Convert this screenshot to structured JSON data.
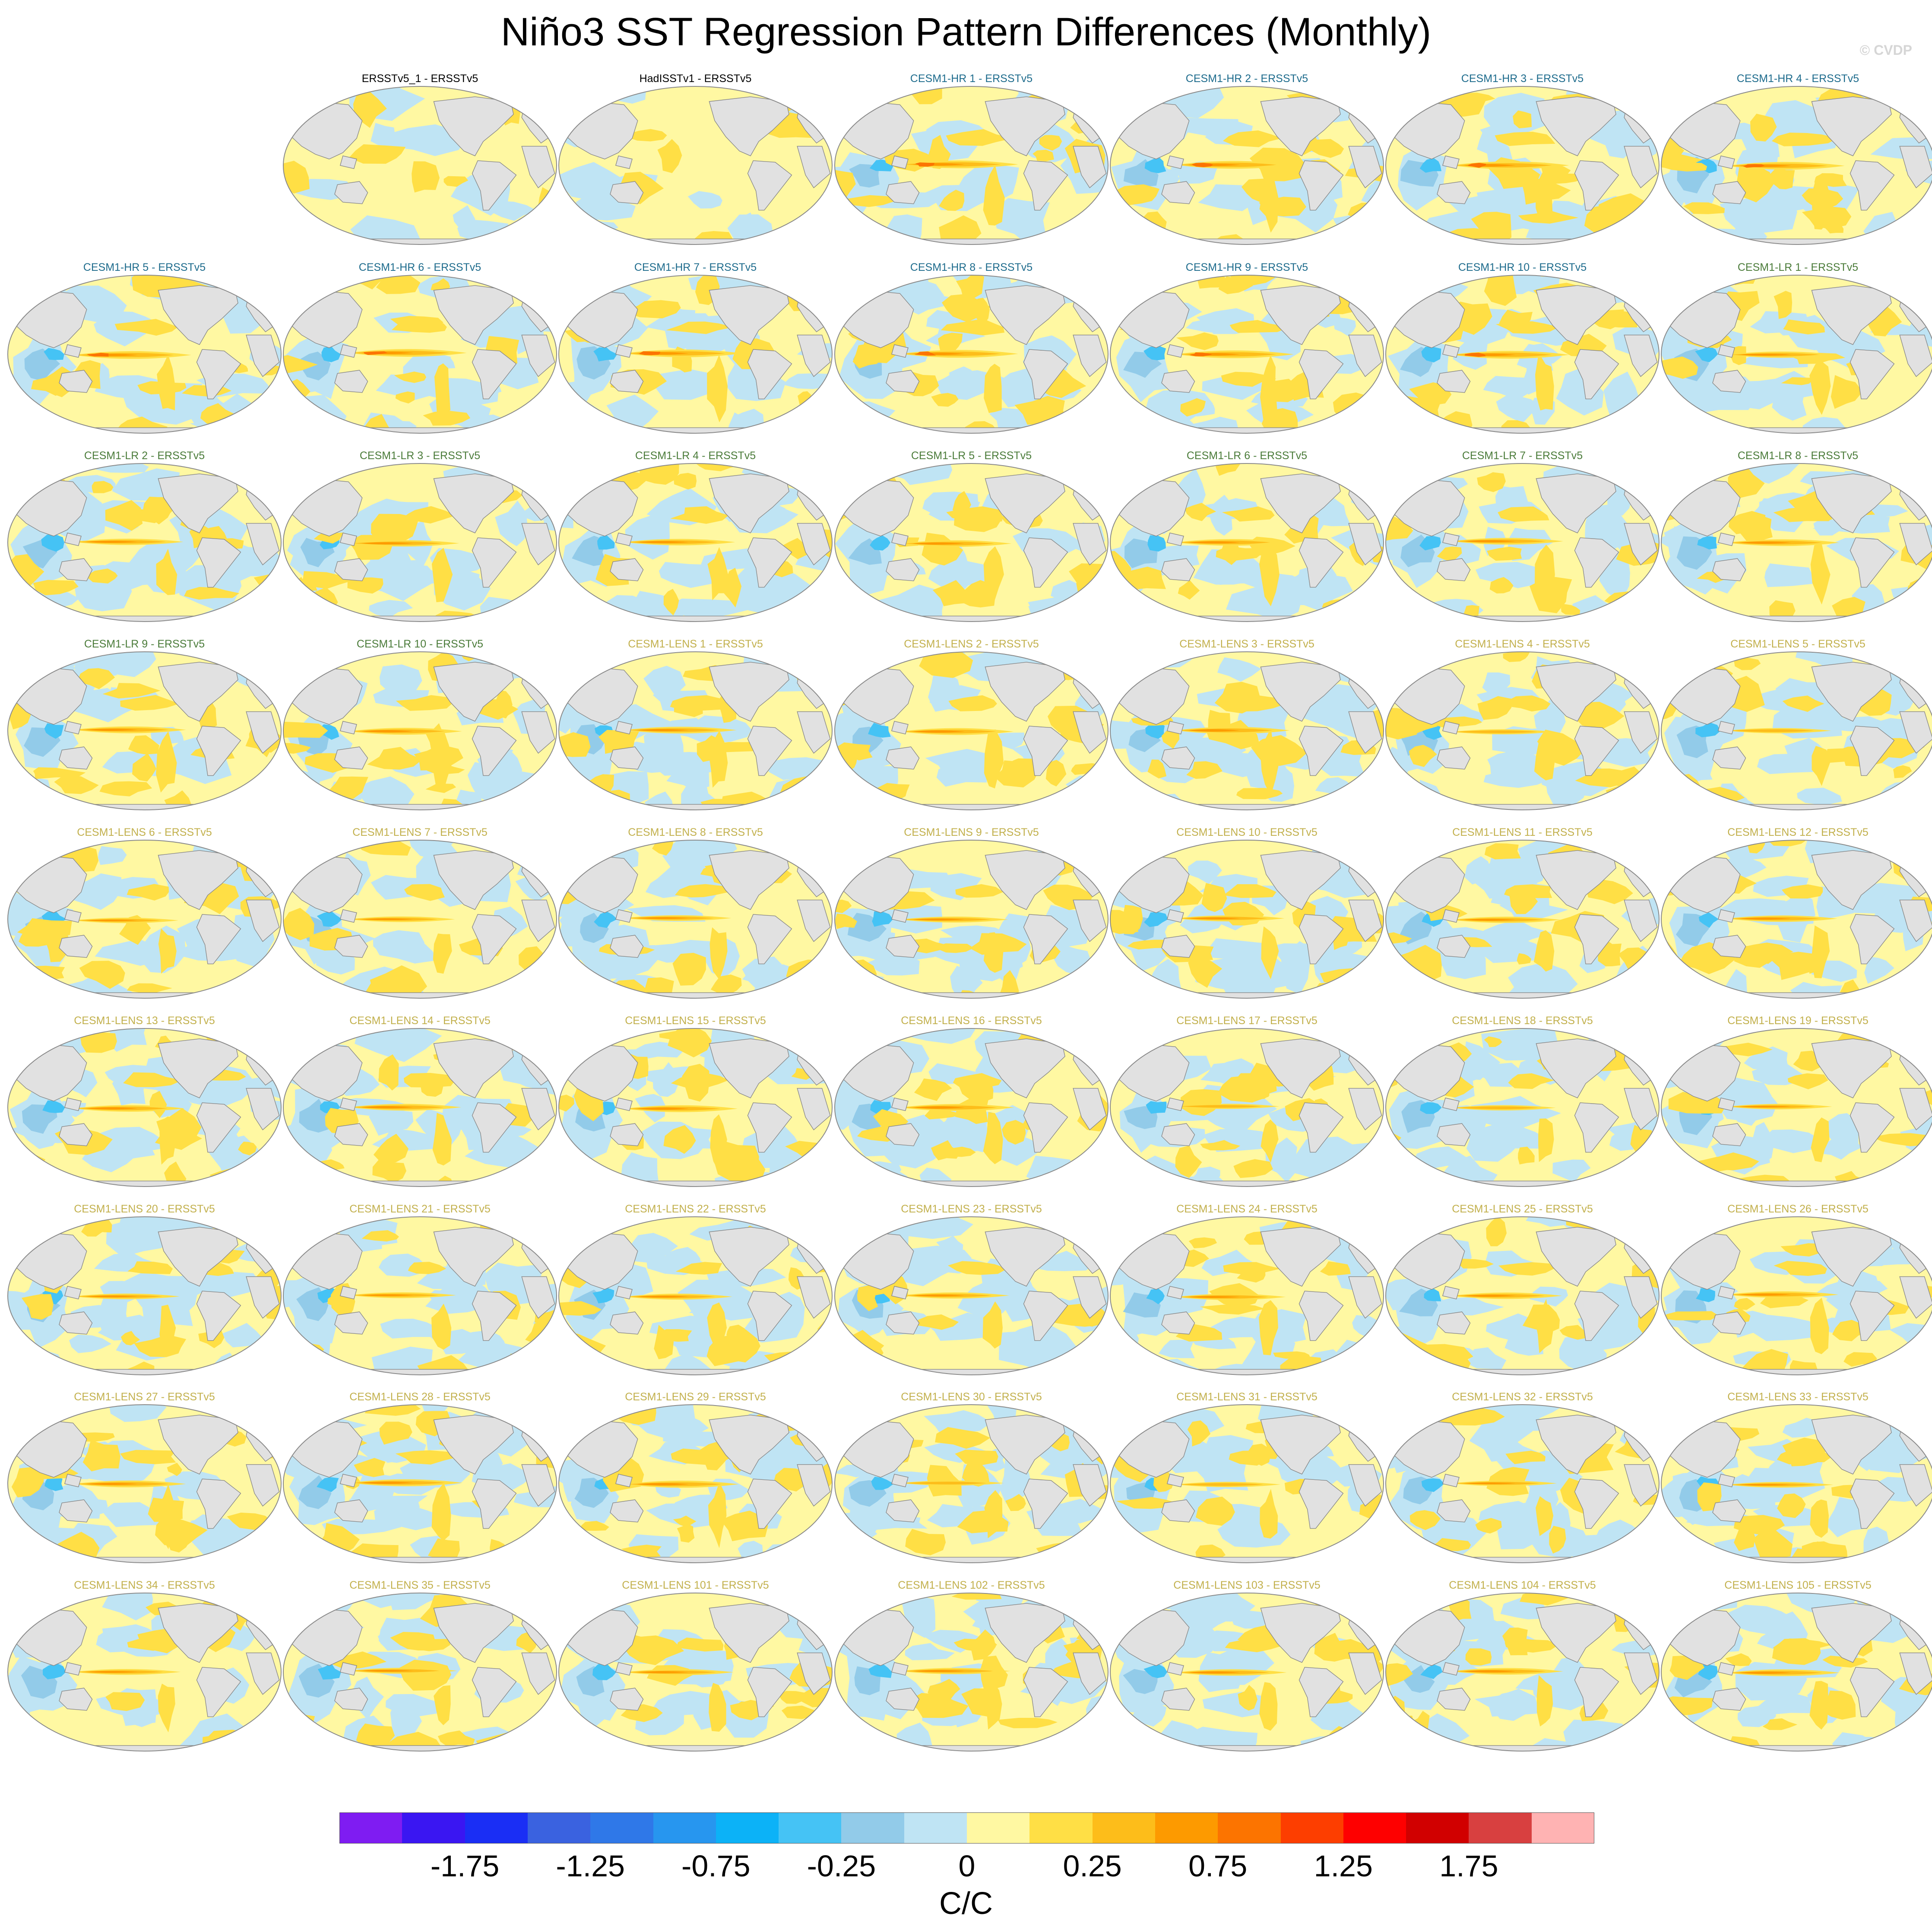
{
  "figure": {
    "title": "Niño3 SST Regression Pattern Differences (Monthly)",
    "copyright": "© CVDP",
    "colors": {
      "obs_label": "#000000",
      "hr_label": "#1d6b8c",
      "lr_label": "#4a7b39",
      "lens_label": "#c2b04c",
      "land": "#e1e1e1",
      "coast": "#888888"
    }
  },
  "panels": [
    {
      "label": "ERSSTv5_1 - ERSSTv5",
      "group": "obs",
      "row": 0,
      "col": 1
    },
    {
      "label": "HadISSTv1 - ERSSTv5",
      "group": "obs",
      "row": 0,
      "col": 2
    },
    {
      "label": "CESM1-HR 1 - ERSSTv5",
      "group": "hr",
      "row": 0,
      "col": 3
    },
    {
      "label": "CESM1-HR 2 - ERSSTv5",
      "group": "hr",
      "row": 0,
      "col": 4
    },
    {
      "label": "CESM1-HR 3 - ERSSTv5",
      "group": "hr",
      "row": 0,
      "col": 5
    },
    {
      "label": "CESM1-HR 4 - ERSSTv5",
      "group": "hr",
      "row": 0,
      "col": 6
    },
    {
      "label": "CESM1-HR 5 - ERSSTv5",
      "group": "hr",
      "row": 1,
      "col": 0
    },
    {
      "label": "CESM1-HR 6 - ERSSTv5",
      "group": "hr",
      "row": 1,
      "col": 1
    },
    {
      "label": "CESM1-HR 7 - ERSSTv5",
      "group": "hr",
      "row": 1,
      "col": 2
    },
    {
      "label": "CESM1-HR 8 - ERSSTv5",
      "group": "hr",
      "row": 1,
      "col": 3
    },
    {
      "label": "CESM1-HR 9 - ERSSTv5",
      "group": "hr",
      "row": 1,
      "col": 4
    },
    {
      "label": "CESM1-HR 10 - ERSSTv5",
      "group": "hr",
      "row": 1,
      "col": 5
    },
    {
      "label": "CESM1-LR 1 - ERSSTv5",
      "group": "lr",
      "row": 1,
      "col": 6
    },
    {
      "label": "CESM1-LR 2 - ERSSTv5",
      "group": "lr",
      "row": 2,
      "col": 0
    },
    {
      "label": "CESM1-LR 3 - ERSSTv5",
      "group": "lr",
      "row": 2,
      "col": 1
    },
    {
      "label": "CESM1-LR 4 - ERSSTv5",
      "group": "lr",
      "row": 2,
      "col": 2
    },
    {
      "label": "CESM1-LR 5 - ERSSTv5",
      "group": "lr",
      "row": 2,
      "col": 3
    },
    {
      "label": "CESM1-LR 6 - ERSSTv5",
      "group": "lr",
      "row": 2,
      "col": 4
    },
    {
      "label": "CESM1-LR 7 - ERSSTv5",
      "group": "lr",
      "row": 2,
      "col": 5
    },
    {
      "label": "CESM1-LR 8 - ERSSTv5",
      "group": "lr",
      "row": 2,
      "col": 6
    },
    {
      "label": "CESM1-LR 9 - ERSSTv5",
      "group": "lr",
      "row": 3,
      "col": 0
    },
    {
      "label": "CESM1-LR 10 - ERSSTv5",
      "group": "lr",
      "row": 3,
      "col": 1
    },
    {
      "label": "CESM1-LENS 1 - ERSSTv5",
      "group": "lens",
      "row": 3,
      "col": 2
    },
    {
      "label": "CESM1-LENS 2 - ERSSTv5",
      "group": "lens",
      "row": 3,
      "col": 3
    },
    {
      "label": "CESM1-LENS 3 - ERSSTv5",
      "group": "lens",
      "row": 3,
      "col": 4
    },
    {
      "label": "CESM1-LENS 4 - ERSSTv5",
      "group": "lens",
      "row": 3,
      "col": 5
    },
    {
      "label": "CESM1-LENS 5 - ERSSTv5",
      "group": "lens",
      "row": 3,
      "col": 6
    },
    {
      "label": "CESM1-LENS 6 - ERSSTv5",
      "group": "lens",
      "row": 4,
      "col": 0
    },
    {
      "label": "CESM1-LENS 7 - ERSSTv5",
      "group": "lens",
      "row": 4,
      "col": 1
    },
    {
      "label": "CESM1-LENS 8 - ERSSTv5",
      "group": "lens",
      "row": 4,
      "col": 2
    },
    {
      "label": "CESM1-LENS 9 - ERSSTv5",
      "group": "lens",
      "row": 4,
      "col": 3
    },
    {
      "label": "CESM1-LENS 10 - ERSSTv5",
      "group": "lens",
      "row": 4,
      "col": 4
    },
    {
      "label": "CESM1-LENS 11 - ERSSTv5",
      "group": "lens",
      "row": 4,
      "col": 5
    },
    {
      "label": "CESM1-LENS 12 - ERSSTv5",
      "group": "lens",
      "row": 4,
      "col": 6
    },
    {
      "label": "CESM1-LENS 13 - ERSSTv5",
      "group": "lens",
      "row": 5,
      "col": 0
    },
    {
      "label": "CESM1-LENS 14 - ERSSTv5",
      "group": "lens",
      "row": 5,
      "col": 1
    },
    {
      "label": "CESM1-LENS 15 - ERSSTv5",
      "group": "lens",
      "row": 5,
      "col": 2
    },
    {
      "label": "CESM1-LENS 16 - ERSSTv5",
      "group": "lens",
      "row": 5,
      "col": 3
    },
    {
      "label": "CESM1-LENS 17 - ERSSTv5",
      "group": "lens",
      "row": 5,
      "col": 4
    },
    {
      "label": "CESM1-LENS 18 - ERSSTv5",
      "group": "lens",
      "row": 5,
      "col": 5
    },
    {
      "label": "CESM1-LENS 19 - ERSSTv5",
      "group": "lens",
      "row": 5,
      "col": 6
    },
    {
      "label": "CESM1-LENS 20 - ERSSTv5",
      "group": "lens",
      "row": 6,
      "col": 0
    },
    {
      "label": "CESM1-LENS 21 - ERSSTv5",
      "group": "lens",
      "row": 6,
      "col": 1
    },
    {
      "label": "CESM1-LENS 22 - ERSSTv5",
      "group": "lens",
      "row": 6,
      "col": 2
    },
    {
      "label": "CESM1-LENS 23 - ERSSTv5",
      "group": "lens",
      "row": 6,
      "col": 3
    },
    {
      "label": "CESM1-LENS 24 - ERSSTv5",
      "group": "lens",
      "row": 6,
      "col": 4
    },
    {
      "label": "CESM1-LENS 25 - ERSSTv5",
      "group": "lens",
      "row": 6,
      "col": 5
    },
    {
      "label": "CESM1-LENS 26 - ERSSTv5",
      "group": "lens",
      "row": 6,
      "col": 6
    },
    {
      "label": "CESM1-LENS 27 - ERSSTv5",
      "group": "lens",
      "row": 7,
      "col": 0
    },
    {
      "label": "CESM1-LENS 28 - ERSSTv5",
      "group": "lens",
      "row": 7,
      "col": 1
    },
    {
      "label": "CESM1-LENS 29 - ERSSTv5",
      "group": "lens",
      "row": 7,
      "col": 2
    },
    {
      "label": "CESM1-LENS 30 - ERSSTv5",
      "group": "lens",
      "row": 7,
      "col": 3
    },
    {
      "label": "CESM1-LENS 31 - ERSSTv5",
      "group": "lens",
      "row": 7,
      "col": 4
    },
    {
      "label": "CESM1-LENS 32 - ERSSTv5",
      "group": "lens",
      "row": 7,
      "col": 5
    },
    {
      "label": "CESM1-LENS 33 - ERSSTv5",
      "group": "lens",
      "row": 7,
      "col": 6
    },
    {
      "label": "CESM1-LENS 34 - ERSSTv5",
      "group": "lens",
      "row": 8,
      "col": 0
    },
    {
      "label": "CESM1-LENS 35 - ERSSTv5",
      "group": "lens",
      "row": 8,
      "col": 1
    },
    {
      "label": "CESM1-LENS 101 - ERSSTv5",
      "group": "lens",
      "row": 8,
      "col": 2
    },
    {
      "label": "CESM1-LENS 102 - ERSSTv5",
      "group": "lens",
      "row": 8,
      "col": 3
    },
    {
      "label": "CESM1-LENS 103 - ERSSTv5",
      "group": "lens",
      "row": 8,
      "col": 4
    },
    {
      "label": "CESM1-LENS 104 - ERSSTv5",
      "group": "lens",
      "row": 8,
      "col": 5
    },
    {
      "label": "CESM1-LENS 105 - ERSSTv5",
      "group": "lens",
      "row": 8,
      "col": 6
    }
  ],
  "colorbar": {
    "units": "C/C",
    "colors": [
      "#7f1cf2",
      "#3a16f2",
      "#1a2ef5",
      "#3a62e0",
      "#2f78e8",
      "#2796ef",
      "#0cb2f7",
      "#45c3f5",
      "#92cbe9",
      "#bfe4f4",
      "#fff8a2",
      "#ffdf45",
      "#fdbd1a",
      "#fd9a00",
      "#fc7400",
      "#fd3e00",
      "#fe0000",
      "#d10000",
      "#d84040",
      "#ffb3b3"
    ],
    "tick_labels": [
      {
        "text": "-1.75",
        "boundary": 2
      },
      {
        "text": "-1.25",
        "boundary": 4
      },
      {
        "text": "-0.75",
        "boundary": 6
      },
      {
        "text": "-0.25",
        "boundary": 8
      },
      {
        "text": "0",
        "boundary": 10
      },
      {
        "text": "0.25",
        "boundary": 12
      },
      {
        "text": "0.75",
        "boundary": 14
      },
      {
        "text": "1.25",
        "boundary": 16
      },
      {
        "text": "1.75",
        "boundary": 18
      }
    ]
  }
}
